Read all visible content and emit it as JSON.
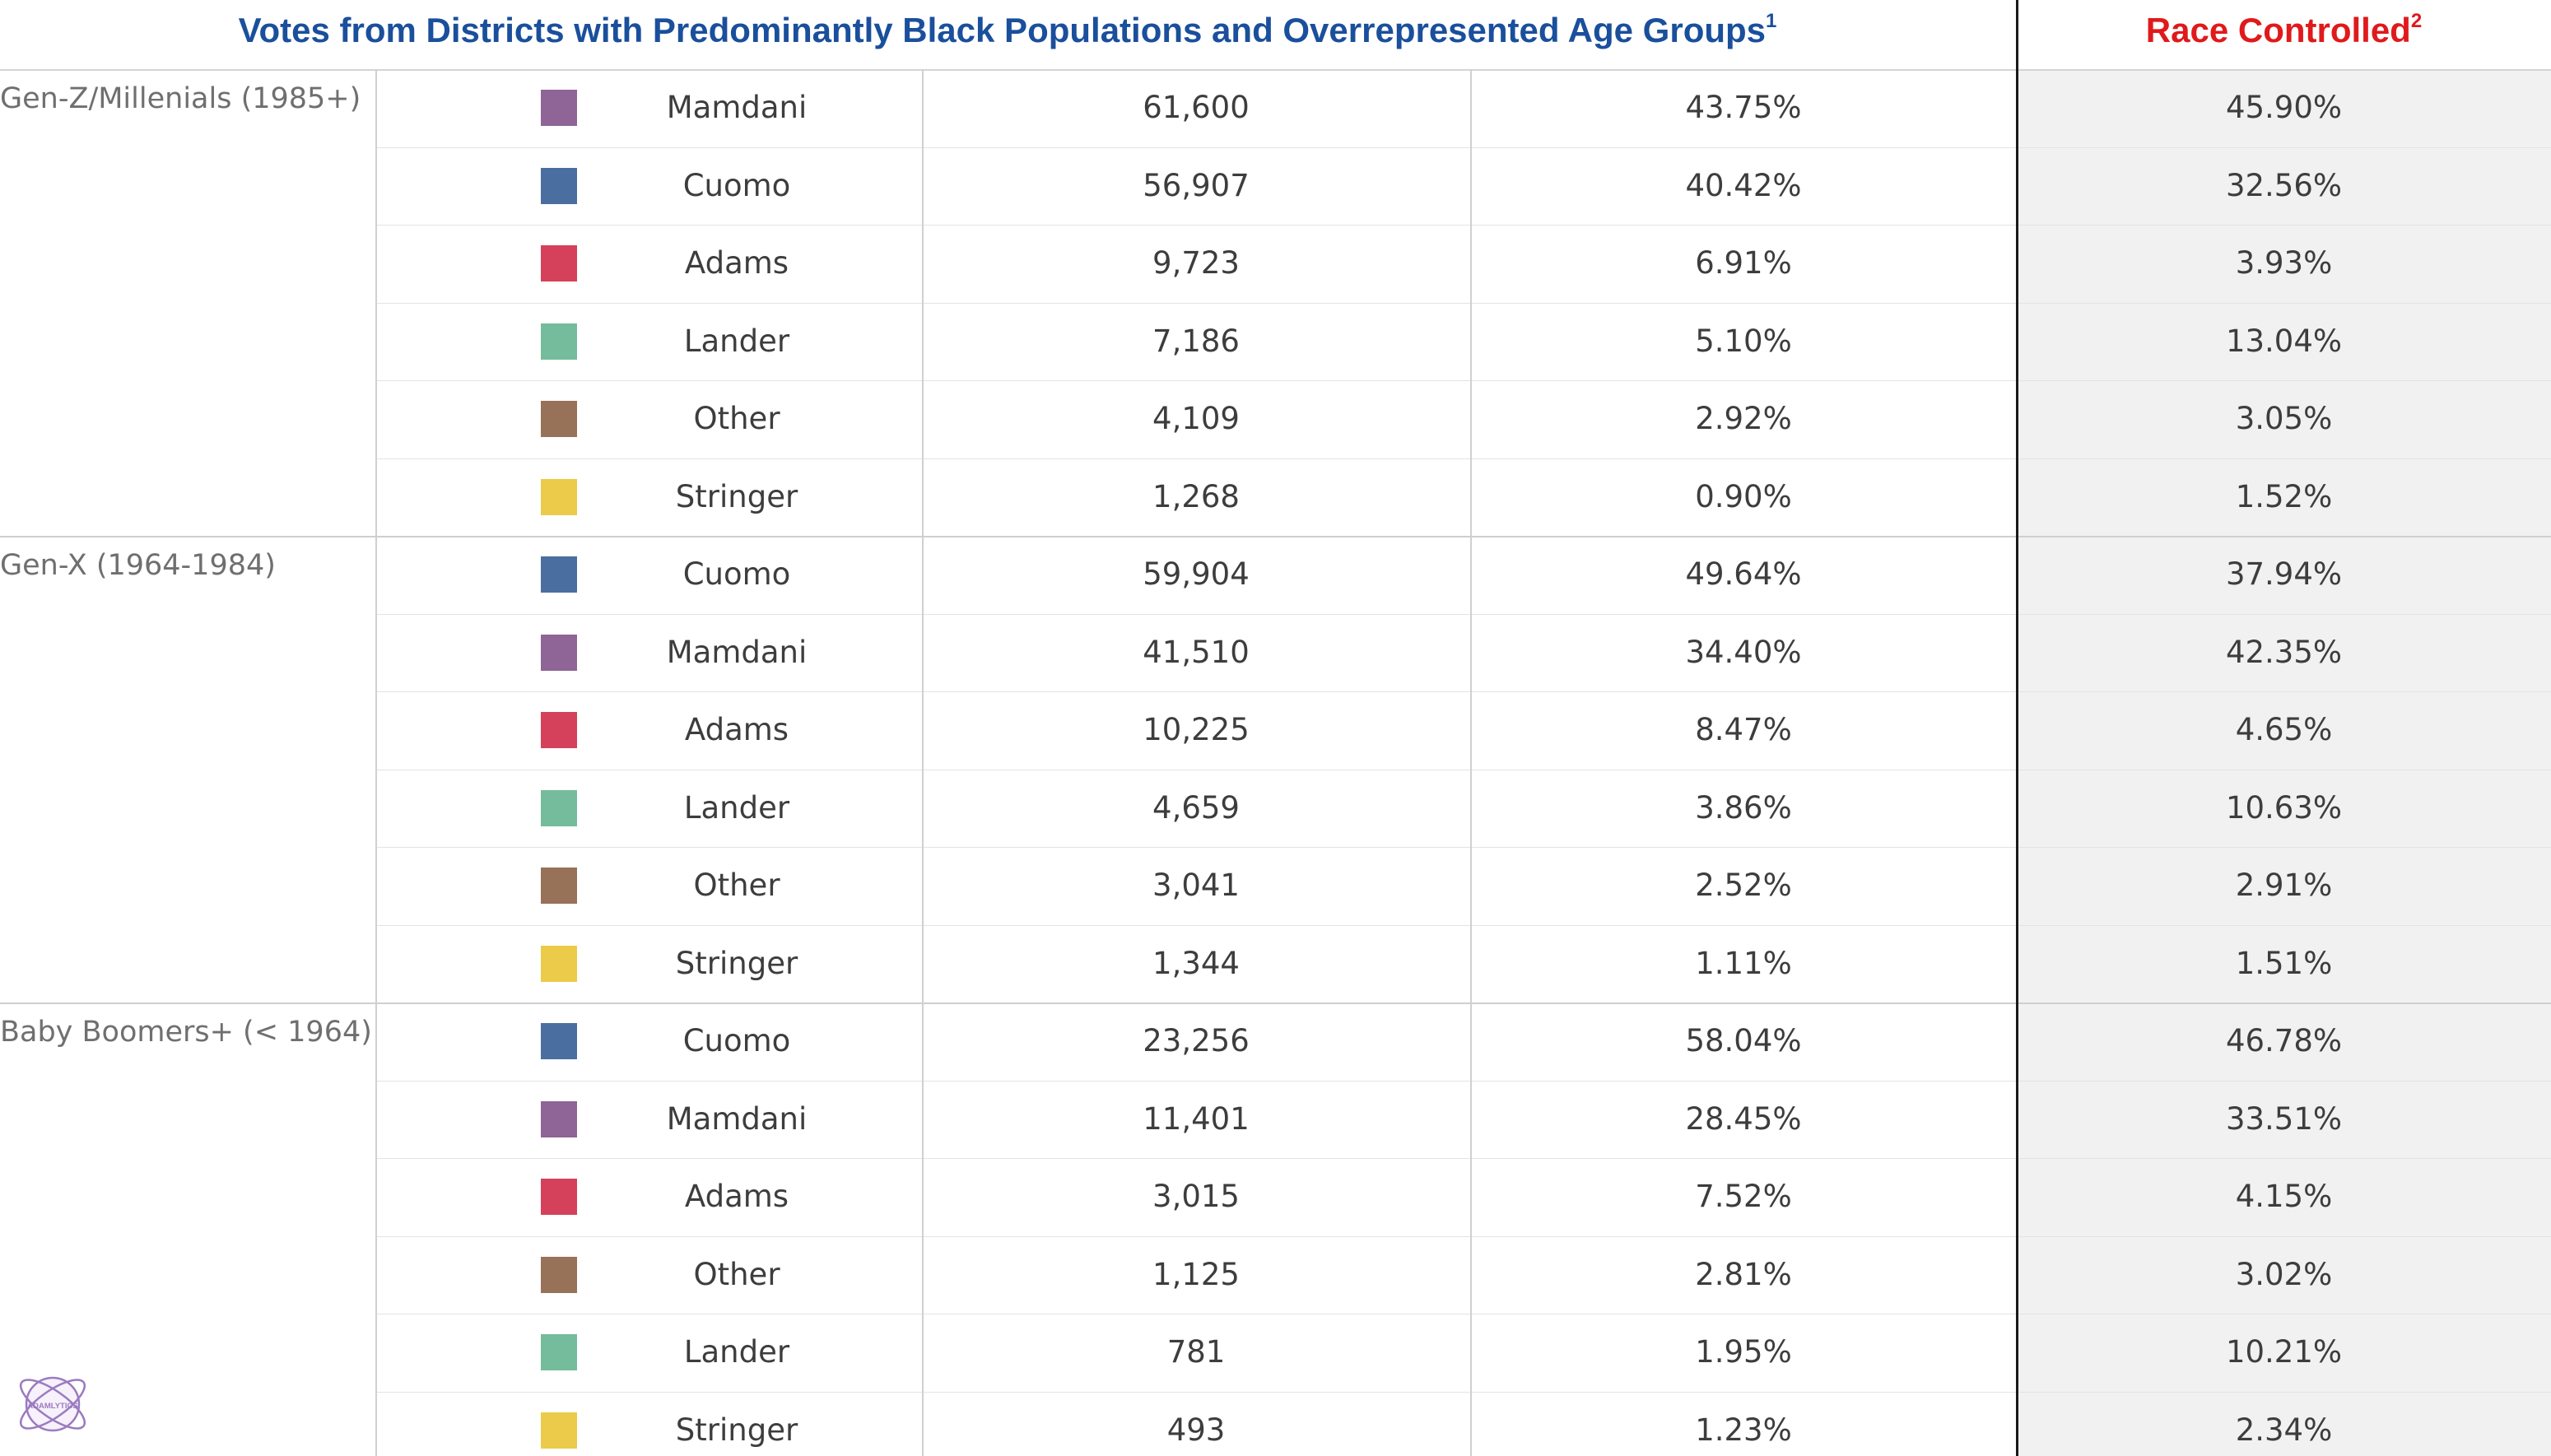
{
  "chart_data": {
    "type": "table",
    "title": "Votes from Districts with Predominantly Black Populations and Overrepresented Age Groups",
    "title_footnote": "1",
    "title_color": "#1a4f9c",
    "race_controlled_header": "Race Controlled",
    "race_controlled_footnote": "2",
    "race_controlled_color": "#e0191b",
    "candidate_colors": {
      "Mamdani": "#8f6496",
      "Cuomo": "#4b6ea0",
      "Adams": "#d5415a",
      "Lander": "#74bc9b",
      "Other": "#987159",
      "Stringer": "#eccb4a"
    },
    "groups": [
      {
        "label": "Gen-Z/Millenials (1985+)",
        "rows": [
          {
            "candidate": "Mamdani",
            "votes": "61,600",
            "share": "43.75%",
            "race_controlled": "45.90%"
          },
          {
            "candidate": "Cuomo",
            "votes": "56,907",
            "share": "40.42%",
            "race_controlled": "32.56%"
          },
          {
            "candidate": "Adams",
            "votes": "9,723",
            "share": "6.91%",
            "race_controlled": "3.93%"
          },
          {
            "candidate": "Lander",
            "votes": "7,186",
            "share": "5.10%",
            "race_controlled": "13.04%"
          },
          {
            "candidate": "Other",
            "votes": "4,109",
            "share": "2.92%",
            "race_controlled": "3.05%"
          },
          {
            "candidate": "Stringer",
            "votes": "1,268",
            "share": "0.90%",
            "race_controlled": "1.52%"
          }
        ]
      },
      {
        "label": "Gen-X (1964-1984)",
        "rows": [
          {
            "candidate": "Cuomo",
            "votes": "59,904",
            "share": "49.64%",
            "race_controlled": "37.94%"
          },
          {
            "candidate": "Mamdani",
            "votes": "41,510",
            "share": "34.40%",
            "race_controlled": "42.35%"
          },
          {
            "candidate": "Adams",
            "votes": "10,225",
            "share": "8.47%",
            "race_controlled": "4.65%"
          },
          {
            "candidate": "Lander",
            "votes": "4,659",
            "share": "3.86%",
            "race_controlled": "10.63%"
          },
          {
            "candidate": "Other",
            "votes": "3,041",
            "share": "2.52%",
            "race_controlled": "2.91%"
          },
          {
            "candidate": "Stringer",
            "votes": "1,344",
            "share": "1.11%",
            "race_controlled": "1.51%"
          }
        ]
      },
      {
        "label": "Baby Boomers+ (< 1964)",
        "rows": [
          {
            "candidate": "Cuomo",
            "votes": "23,256",
            "share": "58.04%",
            "race_controlled": "46.78%"
          },
          {
            "candidate": "Mamdani",
            "votes": "11,401",
            "share": "28.45%",
            "race_controlled": "33.51%"
          },
          {
            "candidate": "Adams",
            "votes": "3,015",
            "share": "7.52%",
            "race_controlled": "4.15%"
          },
          {
            "candidate": "Other",
            "votes": "1,125",
            "share": "2.81%",
            "race_controlled": "3.02%"
          },
          {
            "candidate": "Lander",
            "votes": "781",
            "share": "1.95%",
            "race_controlled": "10.21%"
          },
          {
            "candidate": "Stringer",
            "votes": "493",
            "share": "1.23%",
            "race_controlled": "2.34%"
          }
        ]
      }
    ]
  },
  "logo": {
    "text": "ADAMLYTICS",
    "color": "#9b7bc0",
    "icon": "atom-icon"
  }
}
